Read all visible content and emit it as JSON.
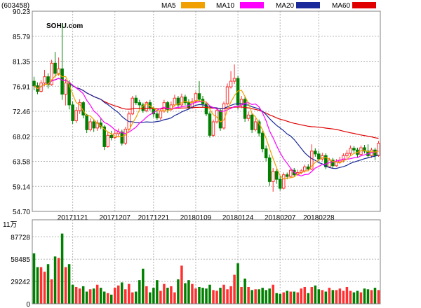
{
  "stock_code": "(603458)",
  "watermark": "SOHU.com",
  "colors": {
    "ma5": "#f0a000",
    "ma10": "#ff00ff",
    "ma20": "#1a2a9a",
    "ma60": "#e00000",
    "up": "#ff3030",
    "down": "#008000",
    "grid": "#b4b4b4",
    "frame": "#808080"
  },
  "legend": [
    {
      "label": "MA5",
      "color_key": "ma5"
    },
    {
      "label": "MA10",
      "color_key": "ma10"
    },
    {
      "label": "MA20",
      "color_key": "ma20"
    },
    {
      "label": "MA60",
      "color_key": "ma60"
    }
  ],
  "chart_data": [
    {
      "type": "candlestick",
      "title": "(603458)",
      "y_ticks": [
        "90.23",
        "85.79",
        "81.35",
        "76.91",
        "72.46",
        "68.02",
        "63.58",
        "59.14",
        "54.70"
      ],
      "ylim": [
        54.7,
        90.23
      ],
      "x_tick_labels": [
        {
          "label": "20171121",
          "index": 11
        },
        {
          "label": "20171207",
          "index": 23
        },
        {
          "label": "20171221",
          "index": 34
        },
        {
          "label": "20180109",
          "index": 46
        },
        {
          "label": "20180124",
          "index": 58
        },
        {
          "label": "20180207",
          "index": 70
        },
        {
          "label": "20180228",
          "index": 81
        }
      ],
      "grid": true,
      "candles": [
        [
          77.8,
          77.0,
          78.6,
          76.2
        ],
        [
          77.0,
          76.0,
          77.6,
          75.5
        ],
        [
          76.0,
          77.5,
          78.0,
          75.8
        ],
        [
          77.5,
          78.6,
          79.8,
          77.0
        ],
        [
          78.6,
          77.2,
          79.2,
          76.5
        ],
        [
          77.2,
          81.0,
          81.6,
          77.0
        ],
        [
          81.0,
          79.2,
          83.0,
          78.5
        ],
        [
          79.2,
          80.0,
          82.0,
          78.8
        ],
        [
          80.0,
          75.5,
          88.0,
          74.5
        ],
        [
          75.5,
          77.5,
          78.2,
          73.5
        ],
        [
          77.5,
          73.6,
          78.0,
          72.8
        ],
        [
          73.6,
          70.8,
          74.2,
          70.2
        ],
        [
          70.8,
          72.6,
          73.2,
          70.4
        ],
        [
          72.6,
          74.0,
          74.6,
          72.0
        ],
        [
          74.0,
          71.8,
          74.3,
          71.2
        ],
        [
          71.8,
          69.2,
          72.0,
          68.6
        ],
        [
          69.2,
          70.6,
          71.2,
          68.9
        ],
        [
          70.6,
          69.5,
          71.0,
          68.8
        ],
        [
          69.5,
          70.4,
          70.9,
          69.0
        ],
        [
          70.4,
          69.7,
          71.3,
          69.3
        ],
        [
          69.7,
          66.2,
          70.0,
          65.6
        ],
        [
          66.2,
          68.2,
          68.8,
          66.0
        ],
        [
          68.2,
          67.8,
          69.0,
          67.3
        ],
        [
          67.8,
          68.5,
          69.3,
          67.5
        ],
        [
          68.5,
          68.8,
          69.4,
          68.0
        ],
        [
          68.8,
          66.8,
          69.2,
          66.4
        ],
        [
          66.8,
          69.3,
          69.7,
          66.5
        ],
        [
          69.3,
          72.0,
          72.4,
          69.0
        ],
        [
          72.0,
          74.8,
          75.2,
          71.8
        ],
        [
          74.8,
          74.0,
          75.3,
          73.6
        ],
        [
          74.0,
          73.6,
          74.5,
          73.0
        ],
        [
          73.6,
          72.6,
          74.0,
          72.2
        ],
        [
          72.6,
          74.0,
          74.3,
          72.3
        ],
        [
          74.0,
          73.0,
          74.5,
          72.6
        ],
        [
          73.0,
          72.0,
          73.3,
          71.4
        ],
        [
          72.0,
          71.3,
          72.5,
          70.9
        ],
        [
          71.3,
          72.5,
          73.0,
          70.9
        ],
        [
          72.5,
          74.0,
          74.5,
          72.2
        ],
        [
          74.0,
          72.8,
          74.3,
          72.2
        ],
        [
          72.8,
          73.6,
          74.2,
          72.5
        ],
        [
          73.6,
          74.8,
          75.4,
          73.3
        ],
        [
          74.8,
          73.6,
          75.2,
          73.2
        ],
        [
          73.6,
          75.0,
          75.6,
          73.3
        ],
        [
          75.0,
          74.0,
          75.4,
          73.5
        ],
        [
          74.0,
          73.2,
          74.6,
          72.8
        ],
        [
          73.2,
          74.2,
          74.8,
          72.9
        ],
        [
          74.2,
          75.6,
          76.0,
          73.9
        ],
        [
          75.6,
          74.6,
          77.8,
          74.2
        ],
        [
          74.6,
          73.8,
          75.2,
          73.2
        ],
        [
          73.8,
          72.0,
          74.2,
          71.6
        ],
        [
          72.0,
          68.2,
          72.4,
          67.8
        ],
        [
          68.2,
          70.6,
          71.0,
          67.9
        ],
        [
          70.6,
          72.6,
          73.0,
          70.3
        ],
        [
          72.6,
          69.5,
          73.0,
          69.0
        ],
        [
          69.5,
          73.8,
          74.2,
          69.2
        ],
        [
          73.8,
          76.8,
          77.4,
          73.5
        ],
        [
          76.8,
          77.8,
          79.6,
          76.5
        ],
        [
          77.8,
          78.3,
          80.8,
          77.3
        ],
        [
          78.3,
          73.6,
          78.8,
          72.8
        ],
        [
          73.6,
          74.6,
          75.2,
          73.0
        ],
        [
          74.6,
          71.2,
          75.0,
          70.6
        ],
        [
          71.2,
          71.8,
          72.4,
          70.7
        ],
        [
          71.8,
          69.2,
          72.2,
          68.6
        ],
        [
          69.2,
          70.6,
          71.2,
          68.9
        ],
        [
          70.6,
          68.6,
          71.0,
          68.0
        ],
        [
          68.6,
          65.8,
          69.0,
          65.2
        ],
        [
          65.8,
          64.2,
          66.4,
          63.6
        ],
        [
          64.2,
          60.0,
          64.8,
          59.2
        ],
        [
          60.0,
          61.8,
          62.4,
          58.2
        ],
        [
          61.8,
          60.4,
          62.2,
          59.6
        ],
        [
          60.4,
          58.8,
          61.0,
          58.4
        ],
        [
          58.8,
          61.2,
          61.6,
          58.6
        ],
        [
          61.2,
          60.9,
          61.6,
          60.4
        ],
        [
          60.9,
          62.0,
          62.4,
          60.6
        ],
        [
          62.0,
          61.2,
          62.4,
          60.8
        ],
        [
          61.2,
          61.6,
          62.1,
          61.0
        ],
        [
          61.6,
          61.9,
          62.2,
          61.3
        ],
        [
          61.9,
          62.6,
          63.0,
          61.6
        ],
        [
          62.6,
          62.2,
          63.1,
          61.9
        ],
        [
          62.2,
          65.4,
          66.6,
          62.0
        ],
        [
          65.4,
          64.9,
          65.9,
          64.4
        ],
        [
          64.9,
          64.0,
          65.5,
          63.6
        ],
        [
          64.0,
          64.6,
          65.1,
          63.7
        ],
        [
          64.6,
          62.6,
          65.0,
          62.2
        ],
        [
          62.6,
          63.8,
          64.2,
          62.4
        ],
        [
          63.8,
          62.8,
          64.2,
          62.4
        ],
        [
          62.8,
          63.5,
          64.0,
          62.6
        ],
        [
          63.5,
          63.8,
          64.4,
          63.1
        ],
        [
          63.8,
          64.6,
          65.0,
          63.4
        ],
        [
          64.6,
          65.0,
          65.6,
          64.2
        ],
        [
          65.0,
          65.9,
          66.4,
          64.6
        ],
        [
          65.9,
          65.6,
          66.3,
          65.1
        ],
        [
          65.6,
          64.8,
          66.0,
          64.3
        ],
        [
          64.8,
          66.0,
          66.4,
          64.5
        ],
        [
          66.0,
          65.4,
          66.5,
          65.0
        ],
        [
          65.4,
          64.6,
          66.6,
          64.2
        ],
        [
          64.6,
          65.6,
          66.0,
          64.2
        ],
        [
          65.6,
          64.6,
          66.0,
          63.8
        ],
        [
          64.6,
          66.8,
          67.2,
          64.4
        ]
      ],
      "ma60_tail": [
        74.0,
        73.9,
        73.8,
        73.6,
        73.5,
        73.5,
        73.4,
        73.4,
        73.4,
        73.4,
        73.5,
        73.5,
        73.6,
        73.6,
        73.7,
        73.7,
        73.7,
        73.8,
        73.8,
        73.9,
        73.9,
        73.9,
        73.9,
        73.9,
        73.9,
        73.9,
        73.9,
        73.9,
        73.8,
        73.7,
        73.6,
        73.4,
        73.2,
        73.0,
        72.6,
        72.3,
        72.0,
        71.6,
        71.3,
        71.0,
        70.7,
        70.4,
        70.2,
        70.0,
        69.8,
        69.7,
        69.6,
        69.5,
        69.4,
        69.4,
        69.3,
        69.3,
        69.2,
        69.2
      ]
    },
    {
      "type": "bar",
      "title": "11万",
      "y_ticks": [
        "87728",
        "58485",
        "29242",
        "0"
      ],
      "ylim": [
        0,
        110000
      ],
      "values": [
        66000,
        48000,
        48000,
        42000,
        52000,
        32000,
        62000,
        60000,
        92000,
        48000,
        52000,
        25000,
        22000,
        20000,
        23000,
        16000,
        19000,
        20000,
        25000,
        21000,
        16000,
        14000,
        12000,
        21000,
        24000,
        28000,
        19000,
        26000,
        15000,
        16000,
        31000,
        46000,
        23000,
        15000,
        21000,
        31000,
        17000,
        26000,
        21000,
        23000,
        15000,
        32000,
        50000,
        27000,
        31000,
        26000,
        20000,
        22000,
        21000,
        20000,
        25000,
        18000,
        17000,
        21000,
        25000,
        19000,
        23000,
        38000,
        53000,
        22000,
        33000,
        22000,
        18000,
        19000,
        19000,
        21000,
        18000,
        20000,
        25000,
        14000,
        13000,
        15000,
        17000,
        16000,
        16000,
        15000,
        20000,
        22000,
        14000,
        22000,
        24000,
        19000,
        18000,
        16000,
        21000,
        18000,
        18000,
        20000,
        17000,
        22000,
        17000,
        15000,
        17000,
        15000,
        20000,
        19000,
        18000,
        21000,
        18000
      ]
    }
  ]
}
